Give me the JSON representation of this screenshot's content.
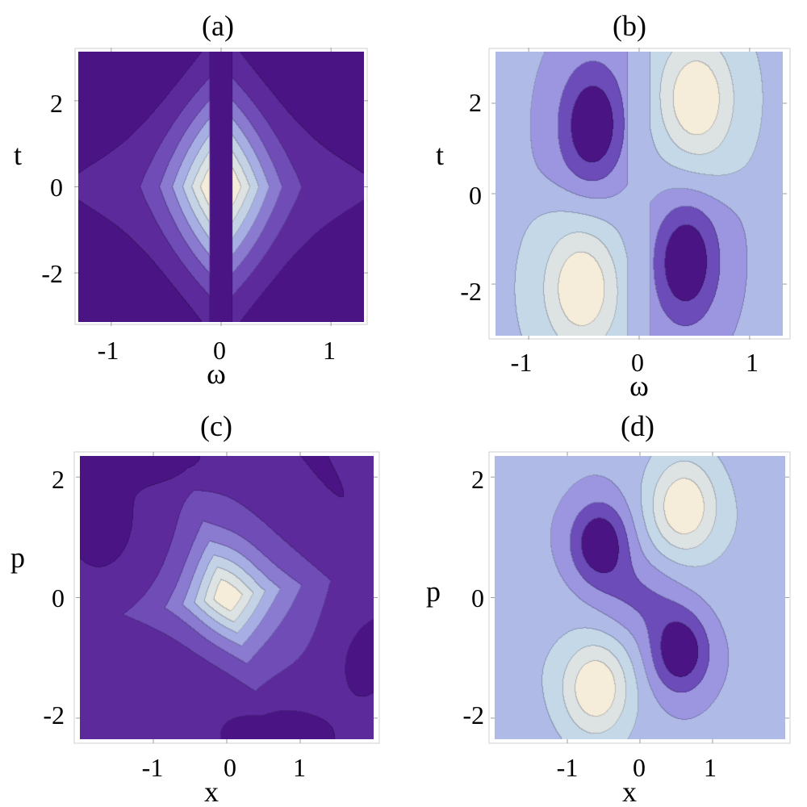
{
  "chart_data": [
    {
      "type": "heatmap",
      "title": "(a)",
      "xlabel": "ω",
      "ylabel": "t",
      "xlim": [
        -1.3,
        1.3
      ],
      "ylim": [
        -3.1416,
        3.1416
      ],
      "xticks": [
        {
          "v": -1,
          "label": "-1"
        },
        {
          "v": 0,
          "label": "0"
        },
        {
          "v": 1,
          "label": "1"
        }
      ],
      "yticks": [
        {
          "v": 2,
          "label": "2"
        },
        {
          "v": 0,
          "label": "0"
        },
        {
          "v": -2,
          "label": "-2"
        }
      ],
      "contour_levels": 10,
      "field": "cosine-of-time-frequency Wigner function: central positive peak at (0,0), negative corners, dark strip |ω|<0.1",
      "colorscale": [
        "#4a1484",
        "#5d2a9c",
        "#6f4cb6",
        "#8a7ad0",
        "#a7aee3",
        "#c4d2e6",
        "#dde2e2",
        "#f5ecda"
      ]
    },
    {
      "type": "heatmap",
      "title": "(b)",
      "xlabel": "ω",
      "ylabel": "t",
      "xlim": [
        -1.3,
        1.3
      ],
      "ylim": [
        -3.1416,
        3.1416
      ],
      "xticks": [
        {
          "v": -1,
          "label": "-1"
        },
        {
          "v": 0,
          "label": "0"
        },
        {
          "v": 1,
          "label": "1"
        }
      ],
      "yticks": [
        {
          "v": 2,
          "label": "2"
        },
        {
          "v": 0,
          "label": "0"
        },
        {
          "v": -2,
          "label": "-2"
        }
      ],
      "contour_levels": 6,
      "field": "sine-of-time-frequency Wigner function: positive lobes at (0.5,2) and (-0.5,-2), negative lobes at (-0.4,1.5) and (0.4,-1.5)",
      "colorscale": [
        "#4a1484",
        "#6b4cb8",
        "#9c96e0",
        "#afbbe6",
        "#c4d8e8",
        "#dde2e2",
        "#f5ecda"
      ]
    },
    {
      "type": "heatmap",
      "title": "(c)",
      "xlabel": "x",
      "ylabel": "p",
      "xlim": [
        -2.0,
        2.0
      ],
      "ylim": [
        -2.35,
        2.35
      ],
      "xticks": [
        {
          "v": -1,
          "label": "-1"
        },
        {
          "v": 0,
          "label": "0"
        },
        {
          "v": 1,
          "label": "1"
        }
      ],
      "yticks": [
        {
          "v": 2,
          "label": "2"
        },
        {
          "v": 0,
          "label": "0"
        },
        {
          "v": -2,
          "label": "-2"
        }
      ],
      "contour_levels": 10,
      "field": "position-momentum Wigner function: central positive peak at (0,0), negative patches near the corners",
      "colorscale": [
        "#4a1484",
        "#5d2a9c",
        "#6f4cb6",
        "#8a7ad0",
        "#a7aee3",
        "#c4d2e6",
        "#dde2e2",
        "#f5ecda"
      ]
    },
    {
      "type": "heatmap",
      "title": "(d)",
      "xlabel": "x",
      "ylabel": "p",
      "xlim": [
        -2.0,
        2.0
      ],
      "ylim": [
        -2.35,
        2.35
      ],
      "xticks": [
        {
          "v": -1,
          "label": "-1"
        },
        {
          "v": 0,
          "label": "0"
        },
        {
          "v": 1,
          "label": "1"
        }
      ],
      "yticks": [
        {
          "v": 2,
          "label": "2"
        },
        {
          "v": 0,
          "label": "0"
        },
        {
          "v": -2,
          "label": "-2"
        }
      ],
      "contour_levels": 7,
      "field": "position-momentum Wigner function: positive lobes at (0.6,1.5) and (-0.6,-1.5), negative lobes at (-0.6,0.9) and (0.6,-0.9)",
      "colorscale": [
        "#4a1484",
        "#6b4cb8",
        "#9c96e0",
        "#afbbe6",
        "#c4d8e8",
        "#dde2e2",
        "#f5ecda"
      ]
    }
  ]
}
